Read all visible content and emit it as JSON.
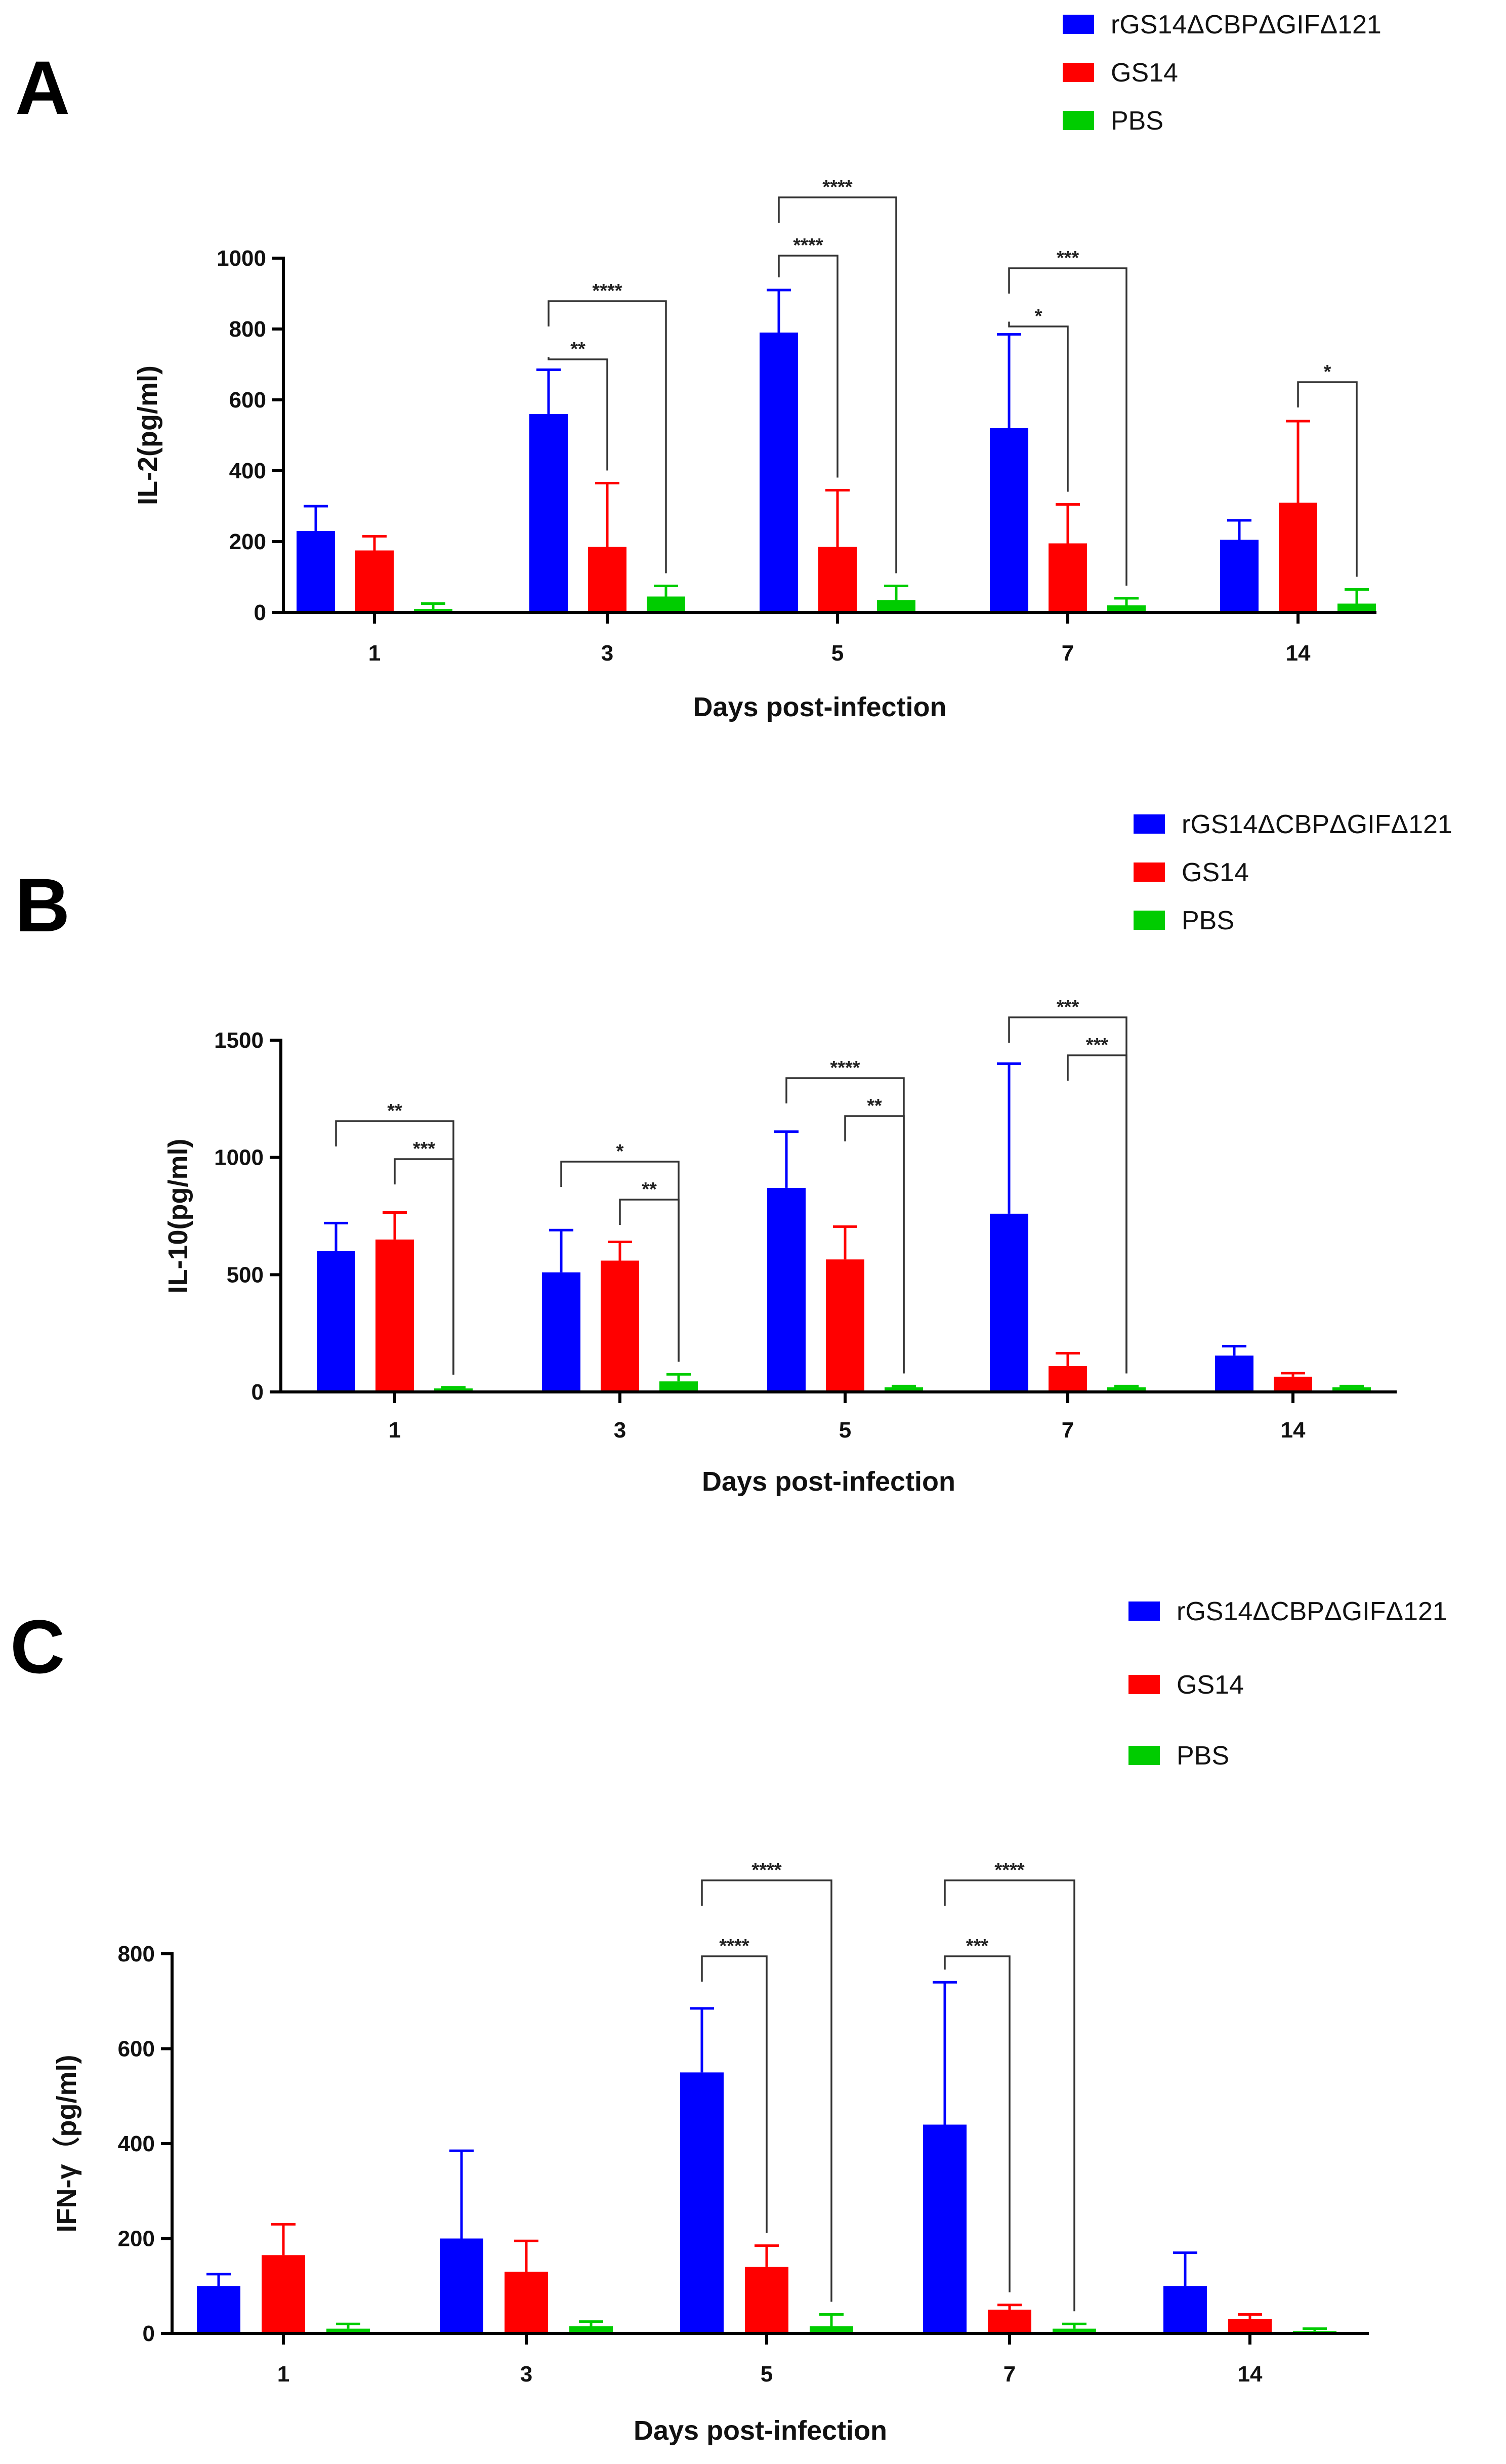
{
  "colors": {
    "blue": "#0000ff",
    "red": "#ff0000",
    "green": "#00cc00"
  },
  "chart_data": [
    {
      "type": "bar",
      "panel": "A",
      "title": "",
      "xlabel": "Days post-infection",
      "ylabel": "IL-2(pg/ml)",
      "categories": [
        "1",
        "3",
        "5",
        "7",
        "14"
      ],
      "ylim": [
        0,
        1000
      ],
      "yticks": [
        "0",
        "200",
        "400",
        "600",
        "800",
        "1000"
      ],
      "legend": [
        "rGS14ΔCBPΔGIFΔ121",
        "GS14",
        "PBS"
      ],
      "series": [
        {
          "name": "rGS14ΔCBPΔGIFΔ121",
          "color": "#0000ff",
          "values": [
            230,
            560,
            790,
            520,
            205
          ],
          "errors": [
            70,
            125,
            120,
            265,
            55
          ]
        },
        {
          "name": "GS14",
          "color": "#ff0000",
          "values": [
            175,
            185,
            185,
            195,
            310
          ],
          "errors": [
            40,
            180,
            160,
            110,
            230
          ]
        },
        {
          "name": "PBS",
          "color": "#00cc00",
          "values": [
            10,
            45,
            35,
            20,
            25
          ],
          "errors": [
            15,
            30,
            40,
            20,
            40
          ]
        }
      ],
      "annotations": [
        {
          "group": 1,
          "from": 0,
          "to": 1,
          "label": "**"
        },
        {
          "group": 1,
          "from": 0,
          "to": 2,
          "label": "****"
        },
        {
          "group": 2,
          "from": 0,
          "to": 1,
          "label": "****"
        },
        {
          "group": 2,
          "from": 0,
          "to": 2,
          "label": "****"
        },
        {
          "group": 3,
          "from": 0,
          "to": 1,
          "label": "*"
        },
        {
          "group": 3,
          "from": 0,
          "to": 2,
          "label": "***"
        },
        {
          "group": 4,
          "from": 1,
          "to": 2,
          "label": "*"
        }
      ]
    },
    {
      "type": "bar",
      "panel": "B",
      "title": "",
      "xlabel": "Days post-infection",
      "ylabel": "IL-10(pg/ml)",
      "categories": [
        "1",
        "3",
        "5",
        "7",
        "14"
      ],
      "ylim": [
        0,
        1500
      ],
      "yticks": [
        "0",
        "500",
        "1000",
        "1500"
      ],
      "legend": [
        "rGS14ΔCBPΔGIFΔ121",
        "GS14",
        "PBS"
      ],
      "series": [
        {
          "name": "rGS14ΔCBPΔGIFΔ121",
          "color": "#0000ff",
          "values": [
            600,
            510,
            870,
            760,
            155
          ],
          "errors": [
            120,
            180,
            240,
            640,
            40
          ]
        },
        {
          "name": "GS14",
          "color": "#ff0000",
          "values": [
            650,
            560,
            565,
            110,
            65
          ],
          "errors": [
            115,
            80,
            140,
            55,
            15
          ]
        },
        {
          "name": "PBS",
          "color": "#00cc00",
          "values": [
            15,
            45,
            20,
            20,
            20
          ],
          "errors": [
            5,
            30,
            5,
            5,
            5
          ]
        }
      ],
      "annotations": [
        {
          "group": 0,
          "from": 0,
          "to": 2,
          "label": "**"
        },
        {
          "group": 0,
          "from": 1,
          "to": 2,
          "label": "***"
        },
        {
          "group": 1,
          "from": 0,
          "to": 2,
          "label": "*"
        },
        {
          "group": 1,
          "from": 1,
          "to": 2,
          "label": "**"
        },
        {
          "group": 2,
          "from": 0,
          "to": 2,
          "label": "****"
        },
        {
          "group": 2,
          "from": 1,
          "to": 2,
          "label": "**"
        },
        {
          "group": 3,
          "from": 0,
          "to": 2,
          "label": "***"
        },
        {
          "group": 3,
          "from": 1,
          "to": 2,
          "label": "***"
        }
      ]
    },
    {
      "type": "bar",
      "panel": "C",
      "title": "",
      "xlabel": "Days post-infection",
      "ylabel": "IFN-γ（pg/ml)",
      "categories": [
        "1",
        "3",
        "5",
        "7",
        "14"
      ],
      "ylim": [
        0,
        800
      ],
      "yticks": [
        "0",
        "200",
        "400",
        "600",
        "800"
      ],
      "legend": [
        "rGS14ΔCBPΔGIFΔ121",
        "GS14",
        "PBS"
      ],
      "series": [
        {
          "name": "rGS14ΔCBPΔGIFΔ121",
          "color": "#0000ff",
          "values": [
            100,
            200,
            550,
            440,
            100
          ],
          "errors": [
            25,
            185,
            135,
            300,
            70
          ]
        },
        {
          "name": "GS14",
          "color": "#ff0000",
          "values": [
            165,
            130,
            140,
            50,
            30
          ],
          "errors": [
            65,
            65,
            45,
            10,
            10
          ]
        },
        {
          "name": "PBS",
          "color": "#00cc00",
          "values": [
            10,
            15,
            15,
            10,
            5
          ],
          "errors": [
            10,
            10,
            25,
            10,
            5
          ]
        }
      ],
      "annotations": [
        {
          "group": 2,
          "from": 0,
          "to": 1,
          "label": "****"
        },
        {
          "group": 2,
          "from": 0,
          "to": 2,
          "label": "****"
        },
        {
          "group": 3,
          "from": 0,
          "to": 1,
          "label": "***"
        },
        {
          "group": 3,
          "from": 0,
          "to": 2,
          "label": "****"
        }
      ]
    }
  ]
}
